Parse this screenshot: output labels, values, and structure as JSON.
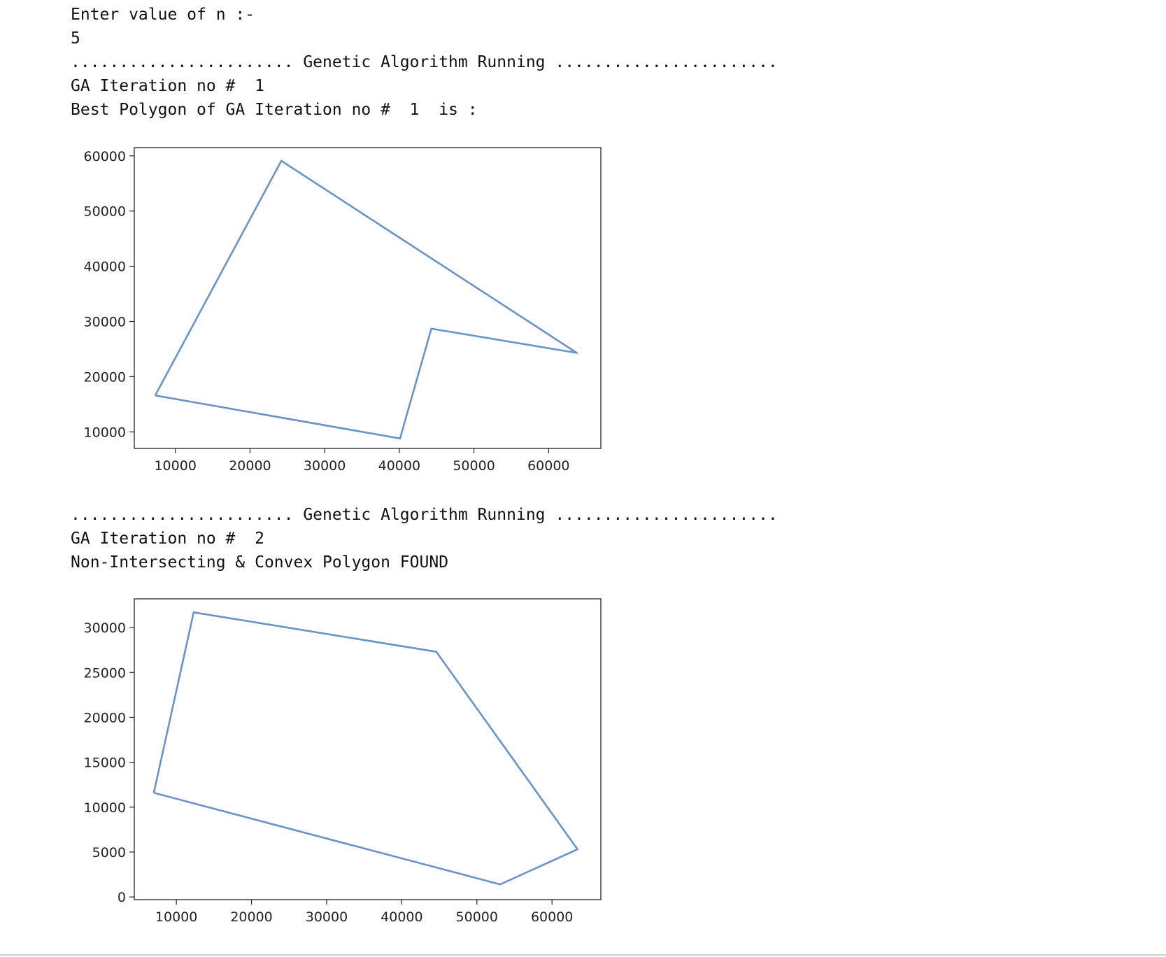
{
  "output": {
    "prompt": "Enter value of n :-",
    "input_value": "5",
    "running_1": "....................... Genetic Algorithm Running .......................",
    "iteration_1": "GA Iteration no #  1",
    "best_polygon_1": "Best Polygon of GA Iteration no #  1  is :",
    "running_2": "....................... Genetic Algorithm Running .......................",
    "iteration_2": "GA Iteration no #  2",
    "found_2": "Non-Intersecting & Convex Polygon FOUND"
  },
  "chart_data": [
    {
      "type": "line",
      "title": "",
      "xlabel": "",
      "ylabel": "",
      "xlim": [
        4500,
        67000
      ],
      "ylim": [
        7000,
        61500
      ],
      "xticks": [
        10000,
        20000,
        30000,
        40000,
        50000,
        60000
      ],
      "yticks": [
        10000,
        20000,
        30000,
        40000,
        50000,
        60000
      ],
      "grid": false,
      "color": "#6a93c8",
      "x": [
        7300,
        24200,
        63800,
        44300,
        40100,
        7300
      ],
      "y": [
        16600,
        59100,
        24300,
        28700,
        8800,
        16600
      ]
    },
    {
      "type": "line",
      "title": "",
      "xlabel": "",
      "ylabel": "",
      "xlim": [
        4400,
        66500
      ],
      "ylim": [
        -300,
        33200
      ],
      "xticks": [
        10000,
        20000,
        30000,
        40000,
        50000,
        60000
      ],
      "yticks": [
        0,
        5000,
        10000,
        15000,
        20000,
        25000,
        30000
      ],
      "grid": false,
      "color": "#6a93c8",
      "x": [
        7000,
        12300,
        44600,
        63400,
        53100,
        7000
      ],
      "y": [
        11600,
        31700,
        27300,
        5300,
        1400,
        11600
      ]
    }
  ]
}
